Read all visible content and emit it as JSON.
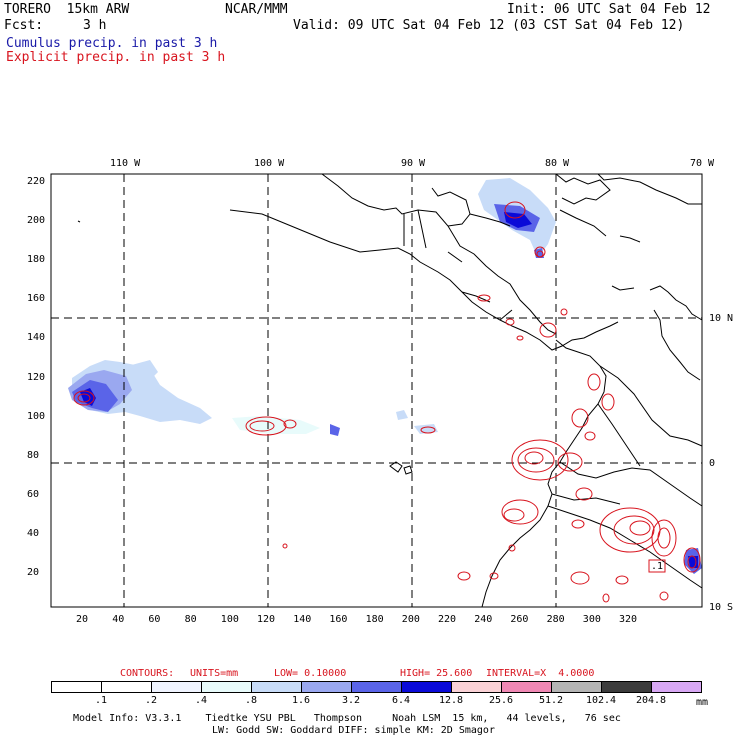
{
  "header": {
    "model": "TORERO  15km ARW",
    "org": "NCAR/MMM",
    "init": "Init: 06 UTC Sat 04 Feb 12",
    "fcst_label": "Fcst:",
    "fcst_value": "3 h",
    "valid": "Valid: 09 UTC Sat 04 Feb 12 (03 CST Sat 04 Feb 12)",
    "field1": "Cumulus precip. in past 3 h",
    "field2": "Explicit precip. in past 3 h"
  },
  "map": {
    "lon_labels": [
      "110 W",
      "100 W",
      "90 W",
      "80 W",
      "70 W"
    ],
    "lat_labels": [
      "10 N",
      "0",
      "10 S"
    ],
    "y_ticks": [
      "220",
      "200",
      "180",
      "160",
      "140",
      "120",
      "100",
      "80",
      "60",
      "40",
      "20"
    ],
    "x_ticks": [
      "20",
      "40",
      "60",
      "80",
      "100",
      "120",
      "140",
      "160",
      "180",
      "200",
      "220",
      "240",
      "260",
      "280",
      "300",
      "320"
    ],
    "box_label": ".1"
  },
  "contours": {
    "label": "CONTOURS:",
    "units": "UNITS=mm",
    "low": "LOW= 0.10000",
    "high": "HIGH= 25.600",
    "interval": "INTERVAL=X  4.0000"
  },
  "colorbar": {
    "labels": [
      ".1",
      ".2",
      ".4",
      ".8",
      "1.6",
      "3.2",
      "6.4",
      "12.8",
      "25.6",
      "51.2",
      "102.4",
      "204.8"
    ],
    "units": "mm",
    "colors": [
      "#ffffff",
      "#ffffff",
      "#f0f4ff",
      "#e8fbfb",
      "#c8dcf8",
      "#9aa8f0",
      "#5a64e8",
      "#0a0ad8",
      "#fad2d6",
      "#f088b4",
      "#b4b4b4",
      "#3c3c3c",
      "#d8a8f4"
    ]
  },
  "footer": {
    "line1": "Model Info: V3.3.1    Tiedtke YSU PBL   Thompson     Noah LSM  15 km,   44 levels,   76 sec",
    "line2": "LW: Godd SW: Goddard DIFF: simple KM: 2D Smagor"
  }
}
